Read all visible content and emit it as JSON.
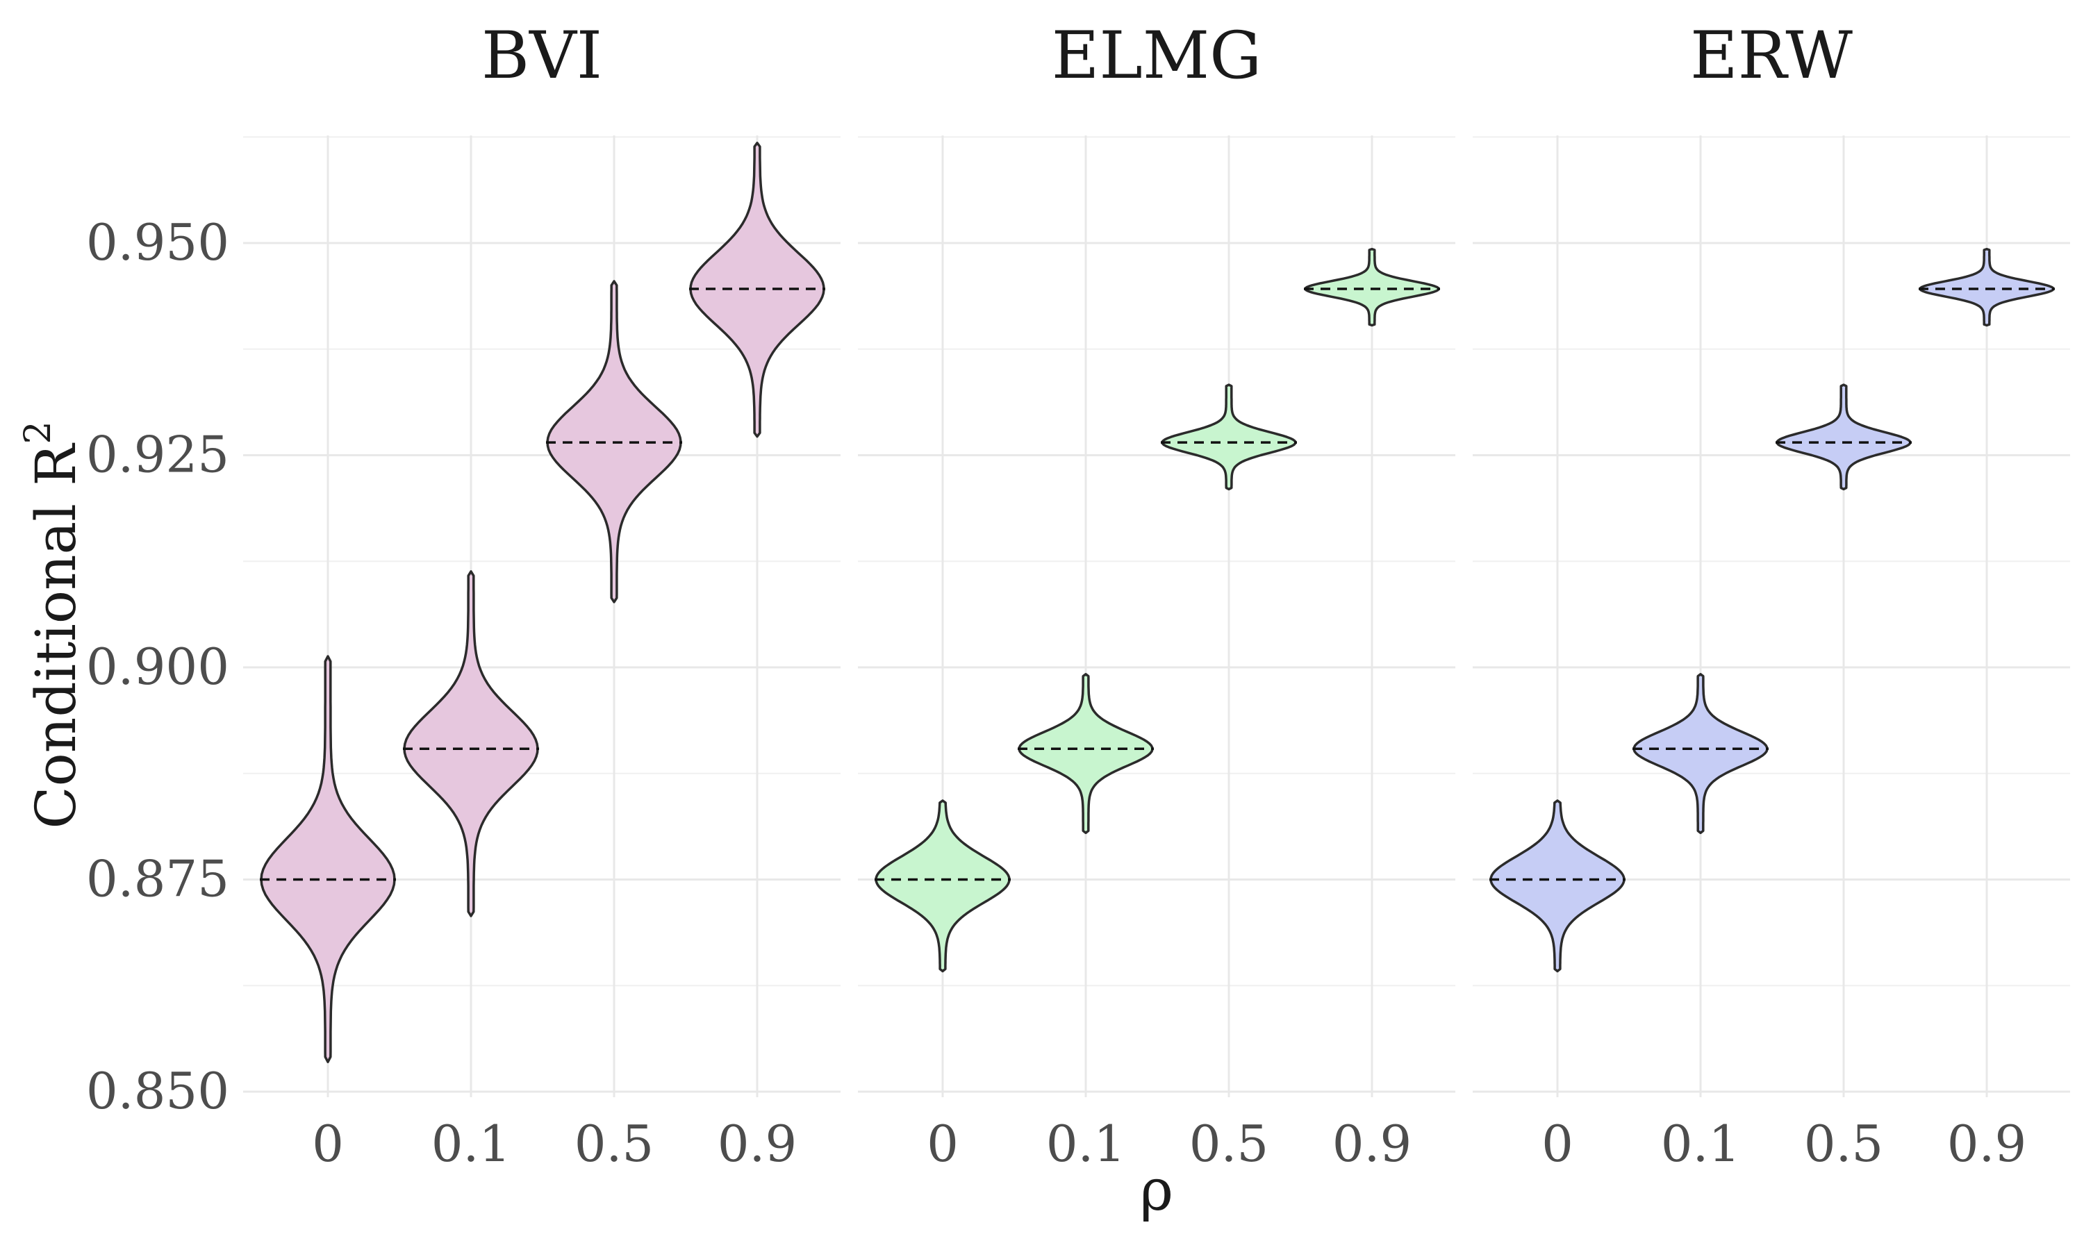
{
  "chart_data": {
    "type": "violin",
    "ylabel": "Conditional R",
    "ylabel_superscript": "2",
    "xlabel": "ρ",
    "categories": [
      "0",
      "0.1",
      "0.5",
      "0.9"
    ],
    "ylim": [
      0.85,
      0.962
    ],
    "yticks": [
      0.85,
      0.875,
      0.9,
      0.925,
      0.95
    ],
    "ytick_labels": [
      "0.850",
      "0.875",
      "0.900",
      "0.925",
      "0.950"
    ],
    "grid": true,
    "facets": [
      {
        "name": "BVI",
        "fill": "#e6c7de",
        "violins": [
          {
            "category": "0",
            "median": 0.875,
            "min": 0.8535,
            "max": 0.9013,
            "spread": 0.0048
          },
          {
            "category": "0.1",
            "median": 0.8904,
            "min": 0.8707,
            "max": 0.9113,
            "spread": 0.0044
          },
          {
            "category": "0.5",
            "median": 0.9265,
            "min": 0.9077,
            "max": 0.9455,
            "spread": 0.0042
          },
          {
            "category": "0.9",
            "median": 0.9446,
            "min": 0.9272,
            "max": 0.9618,
            "spread": 0.0042
          }
        ]
      },
      {
        "name": "ELMG",
        "fill": "#c8f5cf",
        "violins": [
          {
            "category": "0",
            "median": 0.875,
            "min": 0.8642,
            "max": 0.8843,
            "spread": 0.0027
          },
          {
            "category": "0.1",
            "median": 0.8904,
            "min": 0.8805,
            "max": 0.8992,
            "spread": 0.002
          },
          {
            "category": "0.5",
            "median": 0.9265,
            "min": 0.921,
            "max": 0.9333,
            "spread": 0.0012
          },
          {
            "category": "0.9",
            "median": 0.9446,
            "min": 0.9403,
            "max": 0.9493,
            "spread": 0.0009
          }
        ]
      },
      {
        "name": "ERW",
        "fill": "#c6cdf5",
        "violins": [
          {
            "category": "0",
            "median": 0.875,
            "min": 0.8642,
            "max": 0.8843,
            "spread": 0.0027
          },
          {
            "category": "0.1",
            "median": 0.8904,
            "min": 0.8805,
            "max": 0.8992,
            "spread": 0.002
          },
          {
            "category": "0.5",
            "median": 0.9265,
            "min": 0.921,
            "max": 0.9333,
            "spread": 0.0012
          },
          {
            "category": "0.9",
            "median": 0.9446,
            "min": 0.9403,
            "max": 0.9493,
            "spread": 0.0009
          }
        ]
      }
    ]
  }
}
